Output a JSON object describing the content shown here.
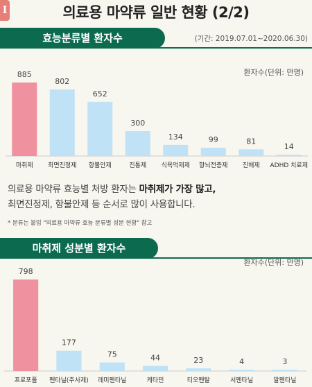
{
  "header": {
    "badge": "I",
    "title": "의료용 마약류 일반 현황 (2/2)"
  },
  "section1": {
    "tab_label": "효능분류별 환자수",
    "period": "(기간: 2019.07.01~2020.06.30)",
    "unit": "환자수(단위: 만명)"
  },
  "description": {
    "line1_pre": "의료용 마약류 효능별 처방 환자는 ",
    "line1_bold": "마취제가 가장 많고,",
    "line2": "최면진정제, 항불안제 등 순서로 많이 사용합니다.",
    "note": "* 분류는 붙임 \"의료용 마약류 효능 분류별 성분 현황\" 참고"
  },
  "section2": {
    "tab_label": "마취제 성분별 환자수",
    "unit": "환자수(단위: 만명)"
  },
  "colors": {
    "accent_green": "#0c6b4f",
    "highlight_bar": "#f0919f",
    "bar": "#bfe2f6",
    "background": "#f7f6ef"
  },
  "chart_data": [
    {
      "type": "bar",
      "ylabel": "환자수(단위: 만명)",
      "categories": [
        "마취제",
        "최면진정제",
        "항불안제",
        "진통제",
        "식욕억제제",
        "항뇌전증제",
        "진해제",
        "ADHD 치료제"
      ],
      "values": [
        885,
        802,
        652,
        300,
        134,
        99,
        81,
        14
      ],
      "highlight_index": 0,
      "ylim": [
        0,
        885
      ],
      "grid": false
    },
    {
      "type": "bar",
      "ylabel": "환자수(단위: 만명)",
      "categories": [
        "프로포폴",
        "펜타닐(주사제)",
        "레미펜타닐",
        "케타민",
        "티오펜탈",
        "서펜타닐",
        "알펜타닐"
      ],
      "values": [
        798,
        177,
        75,
        44,
        23,
        4,
        3
      ],
      "highlight_index": 0,
      "ylim": [
        0,
        798
      ],
      "grid": false
    }
  ]
}
